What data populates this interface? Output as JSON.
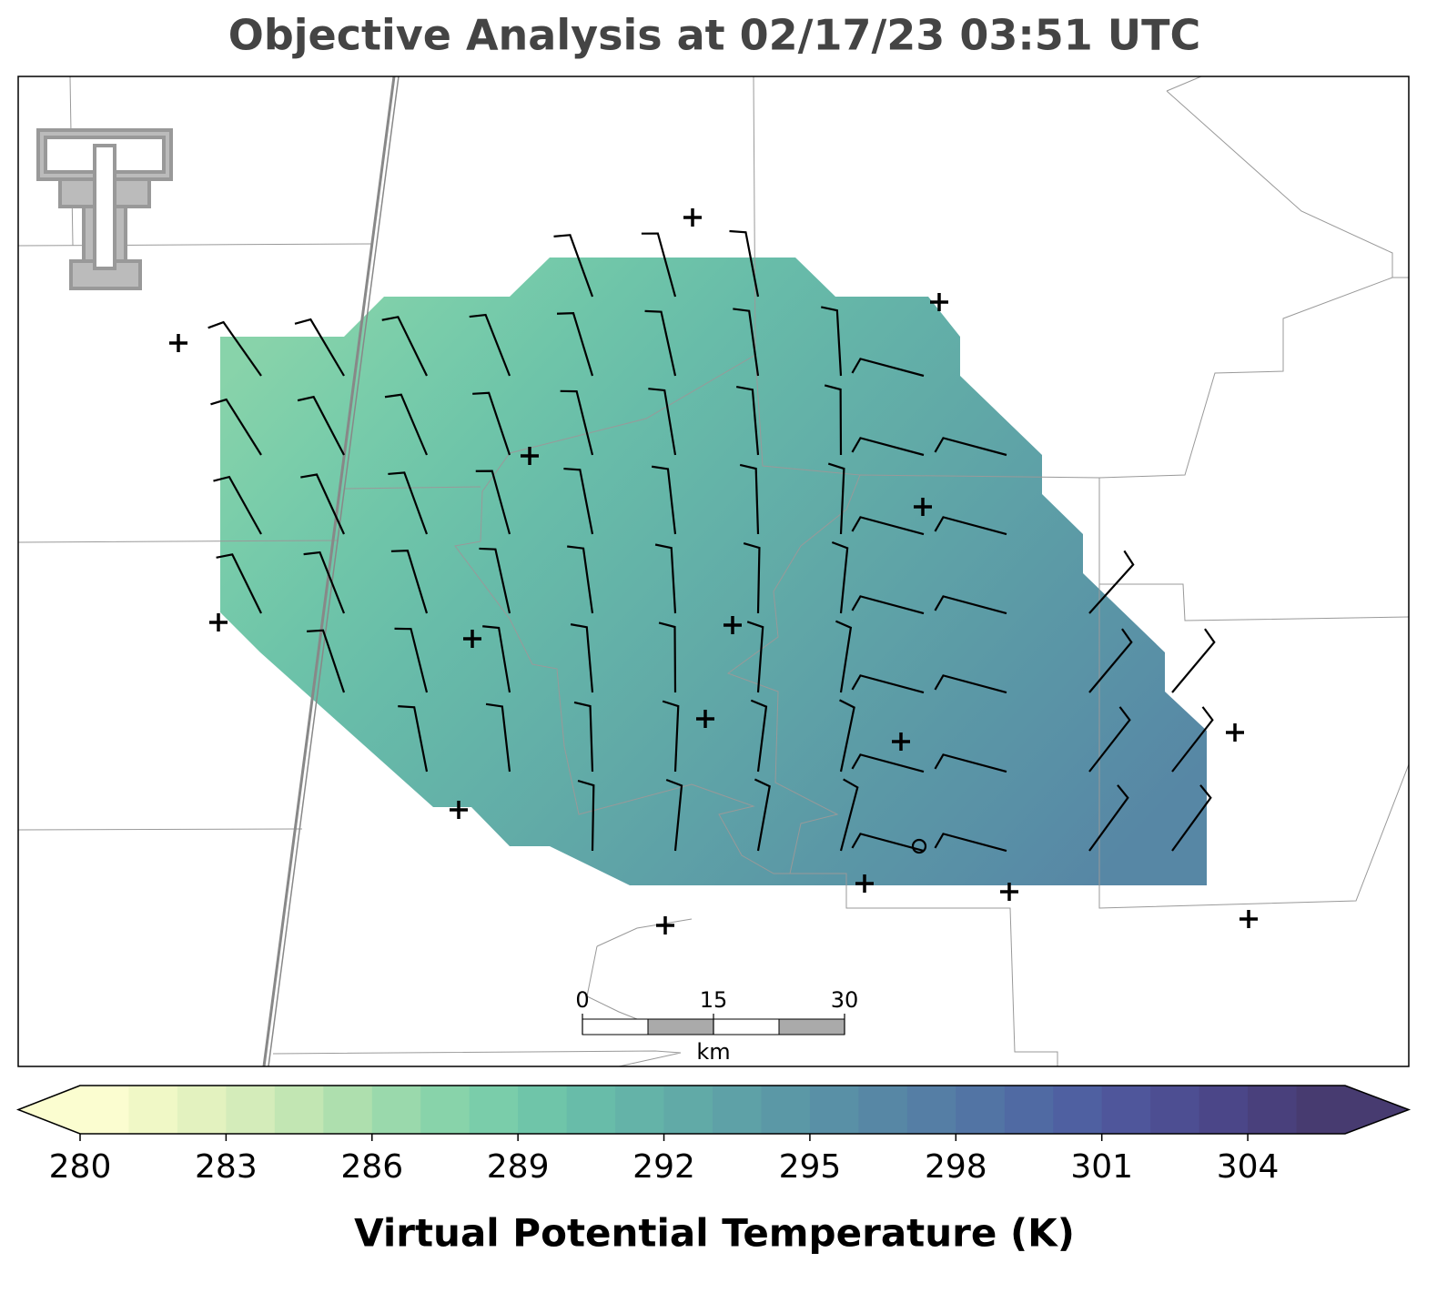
{
  "chart_data": {
    "type": "map",
    "title": "Objective Analysis at 02/17/23 03:51 UTC",
    "colorbar": {
      "label": "Virtual Potential Temperature (K)",
      "lim": [
        280,
        306
      ],
      "ticks": [
        280,
        283,
        286,
        289,
        292,
        295,
        298,
        301,
        304
      ],
      "extend": "both",
      "colors": [
        "#fbfdd0",
        "#f0f8c6",
        "#e3f2bf",
        "#d4ecba",
        "#c2e6b3",
        "#aedfae",
        "#9ad9ac",
        "#88d3aa",
        "#7acdaa",
        "#6fc5a9",
        "#68bca9",
        "#64b3a8",
        "#61aaa7",
        "#5ea1a7",
        "#5b98a6",
        "#5990a6",
        "#5787a5",
        "#557ea5",
        "#5274a4",
        "#506aa3",
        "#4f60a1",
        "#4f569b",
        "#4d4e92",
        "#4b4688",
        "#49407c",
        "#473b70"
      ]
    },
    "scale_bar": {
      "lim": [
        0,
        30
      ],
      "ticks": [
        0,
        15,
        30
      ],
      "unit": "km"
    }
  }
}
